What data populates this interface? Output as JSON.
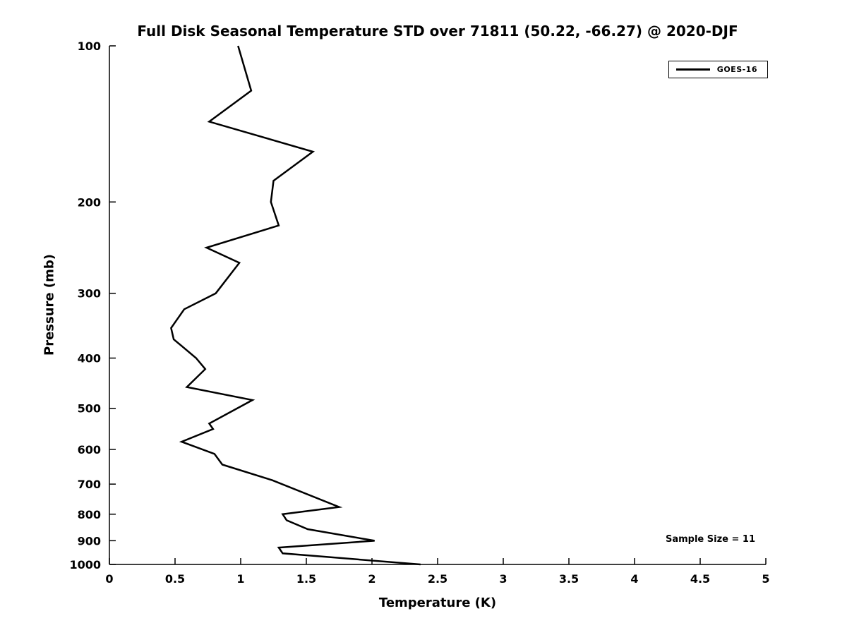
{
  "chart_data": {
    "type": "line",
    "title": "Full Disk Seasonal Temperature STD over 71811 (50.22, -66.27) @ 2020-DJF",
    "xlabel": "Temperature (K)",
    "ylabel": "Pressure (mb)",
    "xlim": [
      0,
      5
    ],
    "ylim": [
      100,
      1000
    ],
    "y_scale": "log",
    "y_direction": "reversed",
    "grid": false,
    "x_tick_labels": [
      "0",
      "0.5",
      "1",
      "1.5",
      "2",
      "2.5",
      "3",
      "3.5",
      "4",
      "4.5",
      "5"
    ],
    "x_ticks": [
      0,
      0.5,
      1,
      1.5,
      2,
      2.5,
      3,
      3.5,
      4,
      4.5,
      5
    ],
    "y_ticks": [
      100,
      200,
      300,
      400,
      500,
      600,
      700,
      800,
      900,
      1000
    ],
    "y_tick_labels": [
      "100",
      "200",
      "300",
      "400",
      "500",
      "600",
      "700",
      "800",
      "900",
      "1000"
    ],
    "line_color": "#000000",
    "legend": {
      "position": "top-right",
      "entries": [
        {
          "label": "GOES-16",
          "color": "#000000"
        }
      ]
    },
    "annotation": "Sample Size = 11",
    "series": [
      {
        "name": "GOES-16",
        "pressure_mb": [
          100,
          122,
          140,
          160,
          182,
          200,
          222,
          245,
          262,
          300,
          322,
          350,
          368,
          400,
          420,
          455,
          482,
          535,
          548,
          580,
          612,
          642,
          688,
          775,
          800,
          822,
          855,
          900,
          928,
          952,
          1000
        ],
        "temperature_std_K": [
          0.98,
          1.08,
          0.76,
          1.55,
          1.25,
          1.23,
          1.29,
          0.74,
          0.99,
          0.81,
          0.57,
          0.47,
          0.49,
          0.66,
          0.73,
          0.59,
          1.09,
          0.76,
          0.79,
          0.55,
          0.8,
          0.86,
          1.24,
          1.75,
          1.32,
          1.35,
          1.51,
          2.02,
          1.29,
          1.32,
          2.37
        ]
      }
    ]
  }
}
